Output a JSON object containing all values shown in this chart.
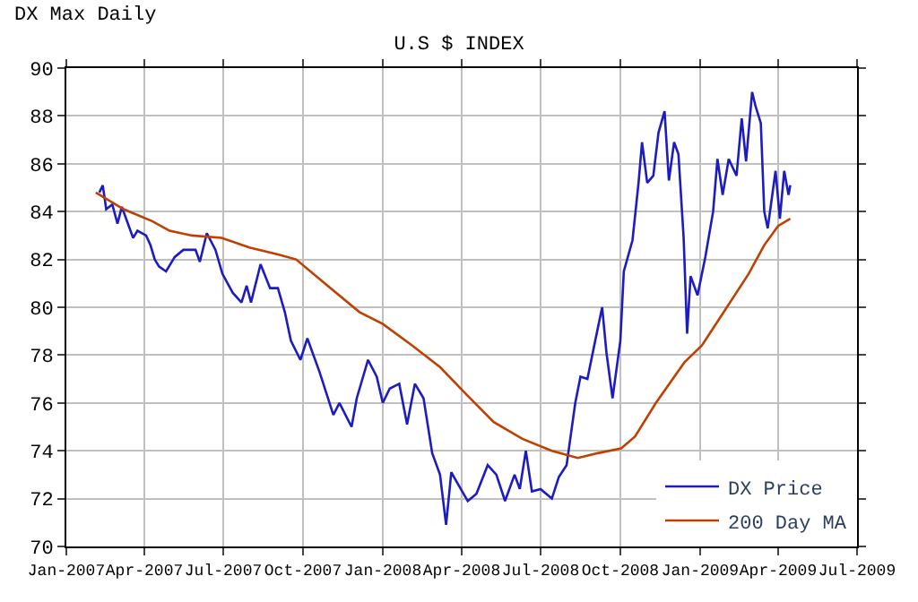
{
  "chart_data": {
    "type": "line",
    "title": "U.S $ INDEX",
    "annotations": [
      "DX Max Daily"
    ],
    "xlim": [
      "2007-01-01",
      "2009-07-01"
    ],
    "xticks": [
      {
        "value": "2007-01-01",
        "label": "Jan-2007"
      },
      {
        "value": "2007-04-01",
        "label": "Apr-2007"
      },
      {
        "value": "2007-07-01",
        "label": "Jul-2007"
      },
      {
        "value": "2007-10-01",
        "label": "Oct-2007"
      },
      {
        "value": "2008-01-01",
        "label": "Jan-2008"
      },
      {
        "value": "2008-04-01",
        "label": "Apr-2008"
      },
      {
        "value": "2008-07-01",
        "label": "Jul-2008"
      },
      {
        "value": "2008-10-01",
        "label": "Oct-2008"
      },
      {
        "value": "2009-01-01",
        "label": "Jan-2009"
      },
      {
        "value": "2009-04-01",
        "label": "Apr-2009"
      },
      {
        "value": "2009-07-01",
        "label": "Jul-2009"
      }
    ],
    "ylim": [
      70,
      90
    ],
    "yticks": [
      70,
      72,
      74,
      76,
      78,
      80,
      82,
      84,
      86,
      88,
      90
    ],
    "grid": true,
    "legend": "bottom right",
    "marker": "none",
    "line_style": "solid",
    "series": [
      {
        "name": "DX Price",
        "color": "#1c1cc0",
        "x": [
          "2007-02-08",
          "2007-02-12",
          "2007-02-16",
          "2007-02-23",
          "2007-03-01",
          "2007-03-06",
          "2007-03-14",
          "2007-03-19",
          "2007-03-24",
          "2007-04-03",
          "2007-04-08",
          "2007-04-13",
          "2007-04-18",
          "2007-04-26",
          "2007-05-06",
          "2007-05-16",
          "2007-05-30",
          "2007-06-04",
          "2007-06-12",
          "2007-06-22",
          "2007-06-30",
          "2007-07-12",
          "2007-07-22",
          "2007-07-28",
          "2007-08-02",
          "2007-08-13",
          "2007-08-24",
          "2007-09-02",
          "2007-09-10",
          "2007-09-17",
          "2007-09-28",
          "2007-10-06",
          "2007-10-20",
          "2007-11-05",
          "2007-11-12",
          "2007-11-26",
          "2007-12-02",
          "2007-12-15",
          "2007-12-25",
          "2008-01-01",
          "2008-01-09",
          "2008-01-20",
          "2008-01-29",
          "2008-02-07",
          "2008-02-17",
          "2008-02-27",
          "2008-03-07",
          "2008-03-14",
          "2008-03-20",
          "2008-03-31",
          "2008-04-08",
          "2008-04-18",
          "2008-05-01",
          "2008-05-11",
          "2008-05-21",
          "2008-06-01",
          "2008-06-07",
          "2008-06-14",
          "2008-06-21",
          "2008-07-01",
          "2008-07-14",
          "2008-07-22",
          "2008-07-31",
          "2008-08-10",
          "2008-08-16",
          "2008-08-24",
          "2008-09-02",
          "2008-09-10",
          "2008-09-15",
          "2008-09-22",
          "2008-10-01",
          "2008-10-05",
          "2008-10-15",
          "2008-10-22",
          "2008-10-26",
          "2008-11-01",
          "2008-11-08",
          "2008-11-14",
          "2008-11-21",
          "2008-11-26",
          "2008-12-02",
          "2008-12-07",
          "2008-12-13",
          "2008-12-17",
          "2008-12-21",
          "2008-12-29",
          "2009-01-07",
          "2009-01-16",
          "2009-01-21",
          "2009-01-27",
          "2009-02-03",
          "2009-02-12",
          "2009-02-18",
          "2009-02-23",
          "2009-03-02",
          "2009-03-06",
          "2009-03-12",
          "2009-03-16",
          "2009-03-20",
          "2009-03-29",
          "2009-04-03",
          "2009-04-08",
          "2009-04-13",
          "2009-04-15"
        ],
        "values": [
          84.8,
          85.1,
          84.1,
          84.3,
          83.5,
          84.2,
          83.4,
          82.9,
          83.2,
          83.0,
          82.6,
          82.0,
          81.7,
          81.5,
          82.1,
          82.4,
          82.4,
          81.9,
          83.1,
          82.4,
          81.4,
          80.6,
          80.2,
          80.9,
          80.2,
          81.8,
          80.8,
          80.8,
          79.8,
          78.6,
          77.8,
          78.7,
          77.3,
          75.5,
          76.0,
          75.0,
          76.2,
          77.8,
          77.1,
          76.0,
          76.6,
          76.8,
          75.1,
          76.8,
          76.2,
          73.9,
          73.0,
          70.9,
          73.1,
          72.4,
          71.9,
          72.2,
          73.4,
          73.0,
          71.9,
          73.0,
          72.4,
          74.0,
          72.3,
          72.4,
          72.0,
          72.9,
          73.4,
          76.0,
          77.1,
          77.0,
          78.6,
          80.0,
          78.1,
          76.2,
          78.6,
          81.5,
          82.8,
          85.2,
          86.9,
          85.2,
          85.5,
          87.3,
          88.2,
          85.3,
          86.9,
          86.4,
          82.9,
          78.9,
          81.3,
          80.5,
          82.1,
          84.0,
          86.2,
          84.7,
          86.2,
          85.5,
          87.9,
          86.1,
          89.0,
          88.4,
          87.7,
          84.0,
          83.3,
          85.7,
          83.7,
          85.7,
          84.7,
          85.1
        ]
      },
      {
        "name": "200 Day MA",
        "color": "#c04000",
        "x": [
          "2007-02-04",
          "2007-03-08",
          "2007-04-10",
          "2007-04-30",
          "2007-05-26",
          "2007-06-29",
          "2007-07-31",
          "2007-09-03",
          "2007-09-23",
          "2007-10-26",
          "2007-12-05",
          "2008-01-01",
          "2008-02-04",
          "2008-03-07",
          "2008-04-08",
          "2008-05-08",
          "2008-06-10",
          "2008-07-14",
          "2008-08-13",
          "2008-09-05",
          "2008-10-02",
          "2008-10-18",
          "2008-11-11",
          "2008-12-14",
          "2009-01-03",
          "2009-01-30",
          "2009-02-26",
          "2009-03-16",
          "2009-04-01",
          "2009-04-15"
        ],
        "values": [
          84.8,
          84.1,
          83.6,
          83.2,
          83.0,
          82.9,
          82.5,
          82.2,
          82.0,
          81.0,
          79.8,
          79.3,
          78.4,
          77.5,
          76.3,
          75.2,
          74.5,
          74.0,
          73.7,
          73.9,
          74.1,
          74.6,
          76.0,
          77.7,
          78.4,
          79.9,
          81.4,
          82.6,
          83.4,
          83.7
        ]
      }
    ]
  }
}
